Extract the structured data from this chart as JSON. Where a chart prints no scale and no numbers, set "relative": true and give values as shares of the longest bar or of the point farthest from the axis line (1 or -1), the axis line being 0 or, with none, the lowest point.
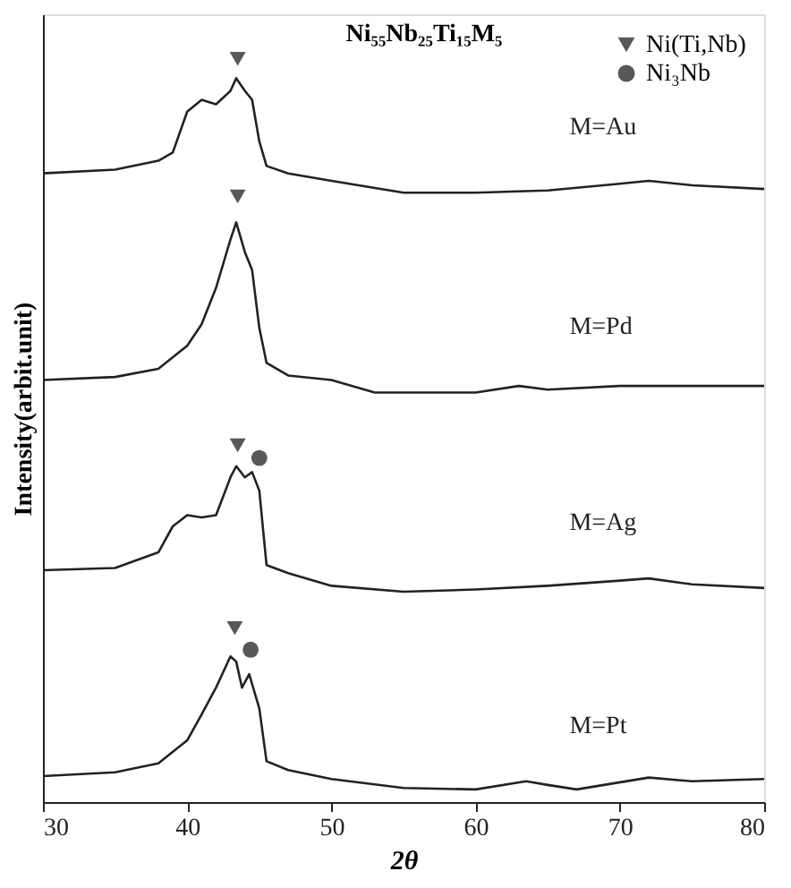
{
  "chart_data": {
    "type": "line",
    "relative": true,
    "xlabel": "2θ",
    "ylabel": "Intensity(arbit.unit)",
    "annotations": [
      "Ni₅₅Nb₂₅Ti₁₅M₅"
    ],
    "xlim": [
      30,
      80
    ],
    "xticks": [
      30,
      40,
      50,
      60,
      70,
      80
    ],
    "grid": false,
    "legend": "top right",
    "tick_labels": "x",
    "marker": "none",
    "line_style": "solid",
    "series": [
      {
        "name": "M=Au",
        "color": "#222222",
        "x": [
          30,
          35,
          38,
          39,
          40,
          41,
          42,
          43,
          43.4,
          44,
          44.5,
          45,
          45.5,
          47,
          50,
          55,
          60,
          65,
          70,
          72,
          75,
          80
        ],
        "values": [
          0.846,
          0.851,
          0.863,
          0.874,
          0.929,
          0.945,
          0.939,
          0.957,
          0.974,
          0.957,
          0.945,
          0.889,
          0.856,
          0.846,
          0.836,
          0.82,
          0.82,
          0.823,
          0.832,
          0.836,
          0.83,
          0.825
        ]
      },
      {
        "name": "M=Pd",
        "color": "#222222",
        "x": [
          30,
          35,
          38,
          40,
          41,
          42,
          43,
          43.4,
          44,
          44.5,
          45,
          45.5,
          47,
          50,
          53,
          60,
          63,
          65,
          70,
          80
        ],
        "values": [
          0.568,
          0.572,
          0.583,
          0.614,
          0.643,
          0.692,
          0.757,
          0.78,
          0.74,
          0.716,
          0.638,
          0.591,
          0.574,
          0.568,
          0.551,
          0.551,
          0.56,
          0.555,
          0.56,
          0.56
        ]
      },
      {
        "name": "M=Ag",
        "color": "#222222",
        "x": [
          30,
          35,
          38,
          39,
          40,
          41,
          42,
          43,
          43.4,
          44,
          44.5,
          45,
          45.5,
          47,
          50,
          55,
          60,
          65,
          70,
          72,
          75,
          80
        ],
        "values": [
          0.312,
          0.315,
          0.336,
          0.371,
          0.386,
          0.383,
          0.386,
          0.437,
          0.452,
          0.437,
          0.444,
          0.419,
          0.319,
          0.308,
          0.291,
          0.283,
          0.286,
          0.291,
          0.298,
          0.301,
          0.293,
          0.288
        ]
      },
      {
        "name": "M=Pt",
        "color": "#222222",
        "x": [
          30,
          35,
          38,
          40,
          41,
          42,
          43,
          43.4,
          43.8,
          44.3,
          45,
          45.5,
          47,
          50,
          55,
          60,
          63.5,
          65,
          67,
          72,
          75,
          80
        ],
        "values": [
          0.035,
          0.04,
          0.052,
          0.083,
          0.118,
          0.154,
          0.196,
          0.189,
          0.154,
          0.172,
          0.126,
          0.055,
          0.043,
          0.031,
          0.019,
          0.017,
          0.028,
          0.023,
          0.017,
          0.033,
          0.028,
          0.031
        ]
      },
      {
        "name": "Ni(Ti,Nb)",
        "type": "scatter",
        "marker": "triangle",
        "color": "#111111",
        "x": [
          43.5,
          43.5,
          43.5,
          43.3
        ],
        "values": [
          1.0,
          0.815,
          0.48,
          0.234
        ]
      },
      {
        "name": "Ni₃Nb",
        "type": "scatter",
        "marker": "circle",
        "color": "#111111",
        "x": [
          45.0,
          44.4
        ],
        "values": [
          0.463,
          0.205
        ]
      }
    ]
  }
}
